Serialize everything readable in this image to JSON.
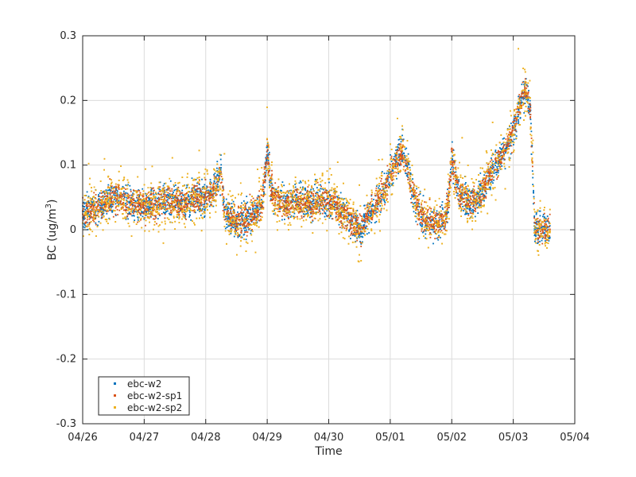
{
  "chart_data": {
    "type": "scatter",
    "xlabel": "Time",
    "ylabel_main": "BC (ug/m",
    "ylabel_sup": "3",
    "ylabel_close": ")",
    "xlim": [
      "04/26",
      "05/04"
    ],
    "ylim": [
      -0.3,
      0.3
    ],
    "x_ticks": [
      "04/26",
      "04/27",
      "04/28",
      "04/29",
      "04/30",
      "05/01",
      "05/02",
      "05/03",
      "05/04"
    ],
    "y_ticks": [
      -0.3,
      -0.2,
      -0.1,
      0,
      0.1,
      0.2,
      0.3
    ],
    "y_tick_labels": [
      "-0.3",
      "-0.2",
      "-0.1",
      "0",
      "0.1",
      "0.2",
      "0.3"
    ],
    "grid": true,
    "legend_position": "bottom-left",
    "data_start": "04/26",
    "data_end": "05/03",
    "series": [
      {
        "name": "ebc-w2",
        "color": "#0072BD"
      },
      {
        "name": "ebc-w2-sp1",
        "color": "#D95319"
      },
      {
        "name": "ebc-w2-sp2",
        "color": "#EDB120"
      }
    ],
    "trend_x_days": [
      0.0,
      0.2,
      0.4,
      0.6,
      0.8,
      1.0,
      1.2,
      1.4,
      1.6,
      1.8,
      2.0,
      2.2,
      2.25,
      2.3,
      2.5,
      2.7,
      2.9,
      2.95,
      3.0,
      3.05,
      3.1,
      3.3,
      3.5,
      3.7,
      3.9,
      4.1,
      4.3,
      4.5,
      4.7,
      4.9,
      5.1,
      5.2,
      5.3,
      5.35,
      5.5,
      5.7,
      5.9,
      5.95,
      6.0,
      6.1,
      6.3,
      6.5,
      6.7,
      6.9,
      7.0,
      7.1,
      7.2,
      7.25,
      7.28,
      7.35,
      7.45,
      7.55,
      7.6
    ],
    "trend_y": [
      0.03,
      0.03,
      0.045,
      0.05,
      0.04,
      0.035,
      0.04,
      0.045,
      0.04,
      0.05,
      0.05,
      0.07,
      0.09,
      0.03,
      0.01,
      0.02,
      0.035,
      0.07,
      0.13,
      0.07,
      0.05,
      0.04,
      0.045,
      0.04,
      0.045,
      0.04,
      0.02,
      0.0,
      0.03,
      0.06,
      0.11,
      0.12,
      0.09,
      0.06,
      0.02,
      0.01,
      0.02,
      0.05,
      0.11,
      0.06,
      0.04,
      0.06,
      0.1,
      0.13,
      0.15,
      0.19,
      0.22,
      0.2,
      0.18,
      0.0,
      0.0,
      0.0,
      0.0
    ]
  }
}
